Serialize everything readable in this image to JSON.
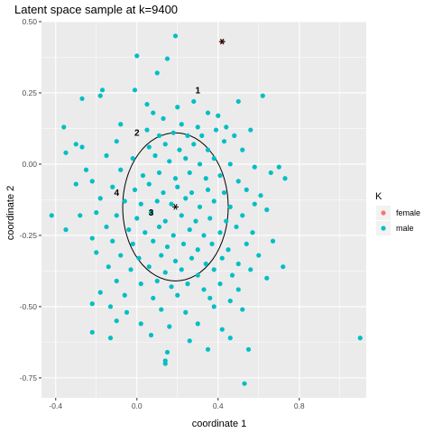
{
  "chart_data": {
    "type": "scatter",
    "title": "Latent space sample at k=9400",
    "xlabel": "coordinate 1",
    "ylabel": "coordinate 2",
    "xlim": [
      -0.47,
      1.13
    ],
    "ylim": [
      -0.82,
      0.5
    ],
    "x_ticks": [
      -0.4,
      0.0,
      0.4,
      0.8
    ],
    "x_tick_labels": [
      "-0.4",
      "0.0",
      "0.4",
      "0.8"
    ],
    "y_ticks": [
      0.5,
      0.25,
      0.0,
      -0.25,
      -0.5,
      -0.75
    ],
    "y_tick_labels": [
      "0.50",
      "0.25",
      "0.00",
      "-0.25",
      "-0.50",
      "-0.75"
    ],
    "grid": true,
    "background": "#ebebeb",
    "legend": {
      "title": "K",
      "position": "right",
      "entries": [
        {
          "label": "female",
          "color": "#f8766d"
        },
        {
          "label": "male",
          "color": "#00bfc4"
        }
      ]
    },
    "series": [
      {
        "name": "female",
        "color": "#f8766d",
        "points": [
          [
            0.42,
            0.43
          ]
        ]
      },
      {
        "name": "male",
        "color": "#00bfc4",
        "points": [
          [
            0.19,
            0.45
          ],
          [
            0.0,
            0.38
          ],
          [
            0.15,
            0.37
          ],
          [
            0.1,
            0.32
          ],
          [
            -0.17,
            0.26
          ],
          [
            -0.18,
            0.24
          ],
          [
            -0.01,
            0.26
          ],
          [
            0.28,
            0.22
          ],
          [
            0.35,
            0.18
          ],
          [
            0.5,
            0.22
          ],
          [
            0.62,
            0.24
          ],
          [
            -0.27,
            0.23
          ],
          [
            0.2,
            0.2
          ],
          [
            0.05,
            0.21
          ],
          [
            0.08,
            0.18
          ],
          [
            0.13,
            0.16
          ],
          [
            0.22,
            0.14
          ],
          [
            0.3,
            0.13
          ],
          [
            0.4,
            0.17
          ],
          [
            0.44,
            0.13
          ],
          [
            -0.36,
            0.13
          ],
          [
            -0.08,
            0.14
          ],
          [
            0.05,
            0.12
          ],
          [
            0.11,
            0.1
          ],
          [
            0.18,
            0.11
          ],
          [
            0.25,
            0.1
          ],
          [
            0.32,
            0.1
          ],
          [
            0.39,
            0.12
          ],
          [
            0.48,
            0.1
          ],
          [
            0.56,
            0.12
          ],
          [
            -0.3,
            0.07
          ],
          [
            -0.27,
            0.06
          ],
          [
            -0.1,
            0.08
          ],
          [
            0.06,
            0.06
          ],
          [
            0.14,
            0.07
          ],
          [
            0.21,
            0.05
          ],
          [
            0.28,
            0.07
          ],
          [
            0.35,
            0.05
          ],
          [
            0.43,
            0.08
          ],
          [
            0.52,
            0.05
          ],
          [
            -0.35,
            0.04
          ],
          [
            -0.15,
            0.03
          ],
          [
            -0.02,
            0.02
          ],
          [
            0.09,
            0.03
          ],
          [
            0.16,
            0.01
          ],
          [
            0.24,
            0.02
          ],
          [
            0.31,
            0.0
          ],
          [
            0.38,
            0.02
          ],
          [
            0.46,
            0.0
          ],
          [
            0.58,
            -0.01
          ],
          [
            0.7,
            -0.01
          ],
          [
            -0.25,
            -0.02
          ],
          [
            -0.08,
            -0.02
          ],
          [
            0.03,
            -0.04
          ],
          [
            0.11,
            -0.03
          ],
          [
            0.19,
            -0.05
          ],
          [
            0.26,
            -0.03
          ],
          [
            0.34,
            -0.05
          ],
          [
            0.41,
            -0.04
          ],
          [
            0.5,
            -0.06
          ],
          [
            0.66,
            -0.03
          ],
          [
            0.73,
            -0.05
          ],
          [
            -0.3,
            -0.07
          ],
          [
            -0.22,
            -0.06
          ],
          [
            -0.12,
            -0.08
          ],
          [
            -0.01,
            -0.09
          ],
          [
            0.06,
            -0.07
          ],
          [
            0.13,
            -0.1
          ],
          [
            0.2,
            -0.08
          ],
          [
            0.27,
            -0.1
          ],
          [
            0.35,
            -0.09
          ],
          [
            0.43,
            -0.1
          ],
          [
            0.54,
            -0.09
          ],
          [
            0.61,
            -0.11
          ],
          [
            -0.18,
            -0.12
          ],
          [
            -0.06,
            -0.13
          ],
          [
            0.02,
            -0.14
          ],
          [
            0.1,
            -0.13
          ],
          [
            0.17,
            -0.14
          ],
          [
            0.24,
            -0.12
          ],
          [
            0.31,
            -0.15
          ],
          [
            0.38,
            -0.13
          ],
          [
            0.46,
            -0.15
          ],
          [
            0.58,
            -0.14
          ],
          [
            -0.28,
            -0.18
          ],
          [
            -0.2,
            -0.17
          ],
          [
            -0.1,
            -0.18
          ],
          [
            0.0,
            -0.19
          ],
          [
            0.07,
            -0.17
          ],
          [
            0.14,
            -0.2
          ],
          [
            0.22,
            -0.18
          ],
          [
            0.29,
            -0.2
          ],
          [
            0.36,
            -0.19
          ],
          [
            0.44,
            -0.2
          ],
          [
            0.52,
            -0.18
          ],
          [
            0.64,
            -0.16
          ],
          [
            -0.42,
            -0.18
          ],
          [
            -0.35,
            -0.23
          ],
          [
            -0.15,
            -0.22
          ],
          [
            -0.04,
            -0.23
          ],
          [
            0.04,
            -0.24
          ],
          [
            0.11,
            -0.22
          ],
          [
            0.18,
            -0.25
          ],
          [
            0.26,
            -0.23
          ],
          [
            0.33,
            -0.25
          ],
          [
            0.41,
            -0.24
          ],
          [
            0.49,
            -0.22
          ],
          [
            0.57,
            -0.24
          ],
          [
            -0.22,
            -0.26
          ],
          [
            -0.12,
            -0.27
          ],
          [
            -0.02,
            -0.28
          ],
          [
            0.08,
            -0.27
          ],
          [
            0.15,
            -0.29
          ],
          [
            0.23,
            -0.28
          ],
          [
            0.3,
            -0.3
          ],
          [
            0.37,
            -0.28
          ],
          [
            0.45,
            -0.3
          ],
          [
            0.54,
            -0.28
          ],
          [
            0.67,
            -0.27
          ],
          [
            -0.2,
            -0.31
          ],
          [
            -0.08,
            -0.32
          ],
          [
            0.01,
            -0.33
          ],
          [
            0.12,
            -0.32
          ],
          [
            0.19,
            -0.34
          ],
          [
            0.27,
            -0.33
          ],
          [
            0.34,
            -0.35
          ],
          [
            0.42,
            -0.33
          ],
          [
            0.5,
            -0.35
          ],
          [
            0.6,
            -0.32
          ],
          [
            -0.14,
            -0.36
          ],
          [
            -0.03,
            -0.37
          ],
          [
            0.06,
            -0.36
          ],
          [
            0.14,
            -0.38
          ],
          [
            0.22,
            -0.37
          ],
          [
            0.3,
            -0.39
          ],
          [
            0.38,
            -0.37
          ],
          [
            0.47,
            -0.39
          ],
          [
            0.56,
            -0.37
          ],
          [
            0.72,
            -0.36
          ],
          [
            -0.1,
            -0.41
          ],
          [
            0.02,
            -0.42
          ],
          [
            0.1,
            -0.41
          ],
          [
            0.17,
            -0.43
          ],
          [
            0.25,
            -0.42
          ],
          [
            0.33,
            -0.44
          ],
          [
            0.41,
            -0.42
          ],
          [
            0.5,
            -0.44
          ],
          [
            0.64,
            -0.4
          ],
          [
            -0.18,
            -0.45
          ],
          [
            -0.06,
            -0.46
          ],
          [
            0.08,
            -0.47
          ],
          [
            0.2,
            -0.46
          ],
          [
            0.36,
            -0.47
          ],
          [
            0.46,
            -0.48
          ],
          [
            -0.22,
            -0.49
          ],
          [
            -0.13,
            -0.5
          ],
          [
            -0.05,
            -0.52
          ],
          [
            0.12,
            -0.51
          ],
          [
            0.24,
            -0.52
          ],
          [
            0.38,
            -0.5
          ],
          [
            0.52,
            -0.51
          ],
          [
            -0.1,
            -0.55
          ],
          [
            0.02,
            -0.56
          ],
          [
            0.16,
            -0.57
          ],
          [
            0.3,
            -0.56
          ],
          [
            0.42,
            -0.58
          ],
          [
            -0.22,
            -0.59
          ],
          [
            -0.13,
            -0.61
          ],
          [
            0.07,
            -0.6
          ],
          [
            0.26,
            -0.62
          ],
          [
            0.46,
            -0.61
          ],
          [
            0.15,
            -0.66
          ],
          [
            0.35,
            -0.65
          ],
          [
            0.55,
            -0.65
          ],
          [
            0.14,
            -0.69
          ],
          [
            0.14,
            -0.7
          ],
          [
            0.53,
            -0.77
          ],
          [
            1.1,
            -0.61
          ]
        ]
      }
    ],
    "annotations": [
      {
        "label": "1",
        "x": 0.3,
        "y": 0.26
      },
      {
        "label": "2",
        "x": 0.0,
        "y": 0.11
      },
      {
        "label": "3",
        "x": 0.07,
        "y": -0.17
      },
      {
        "label": "4",
        "x": -0.1,
        "y": -0.1
      }
    ],
    "markers": [
      {
        "type": "asterisk",
        "x": 0.42,
        "y": 0.43
      },
      {
        "type": "asterisk",
        "x": 0.19,
        "y": -0.15
      }
    ],
    "ellipse": {
      "cx": 0.19,
      "cy": -0.15,
      "rx": 0.26,
      "ry": 0.26
    }
  }
}
